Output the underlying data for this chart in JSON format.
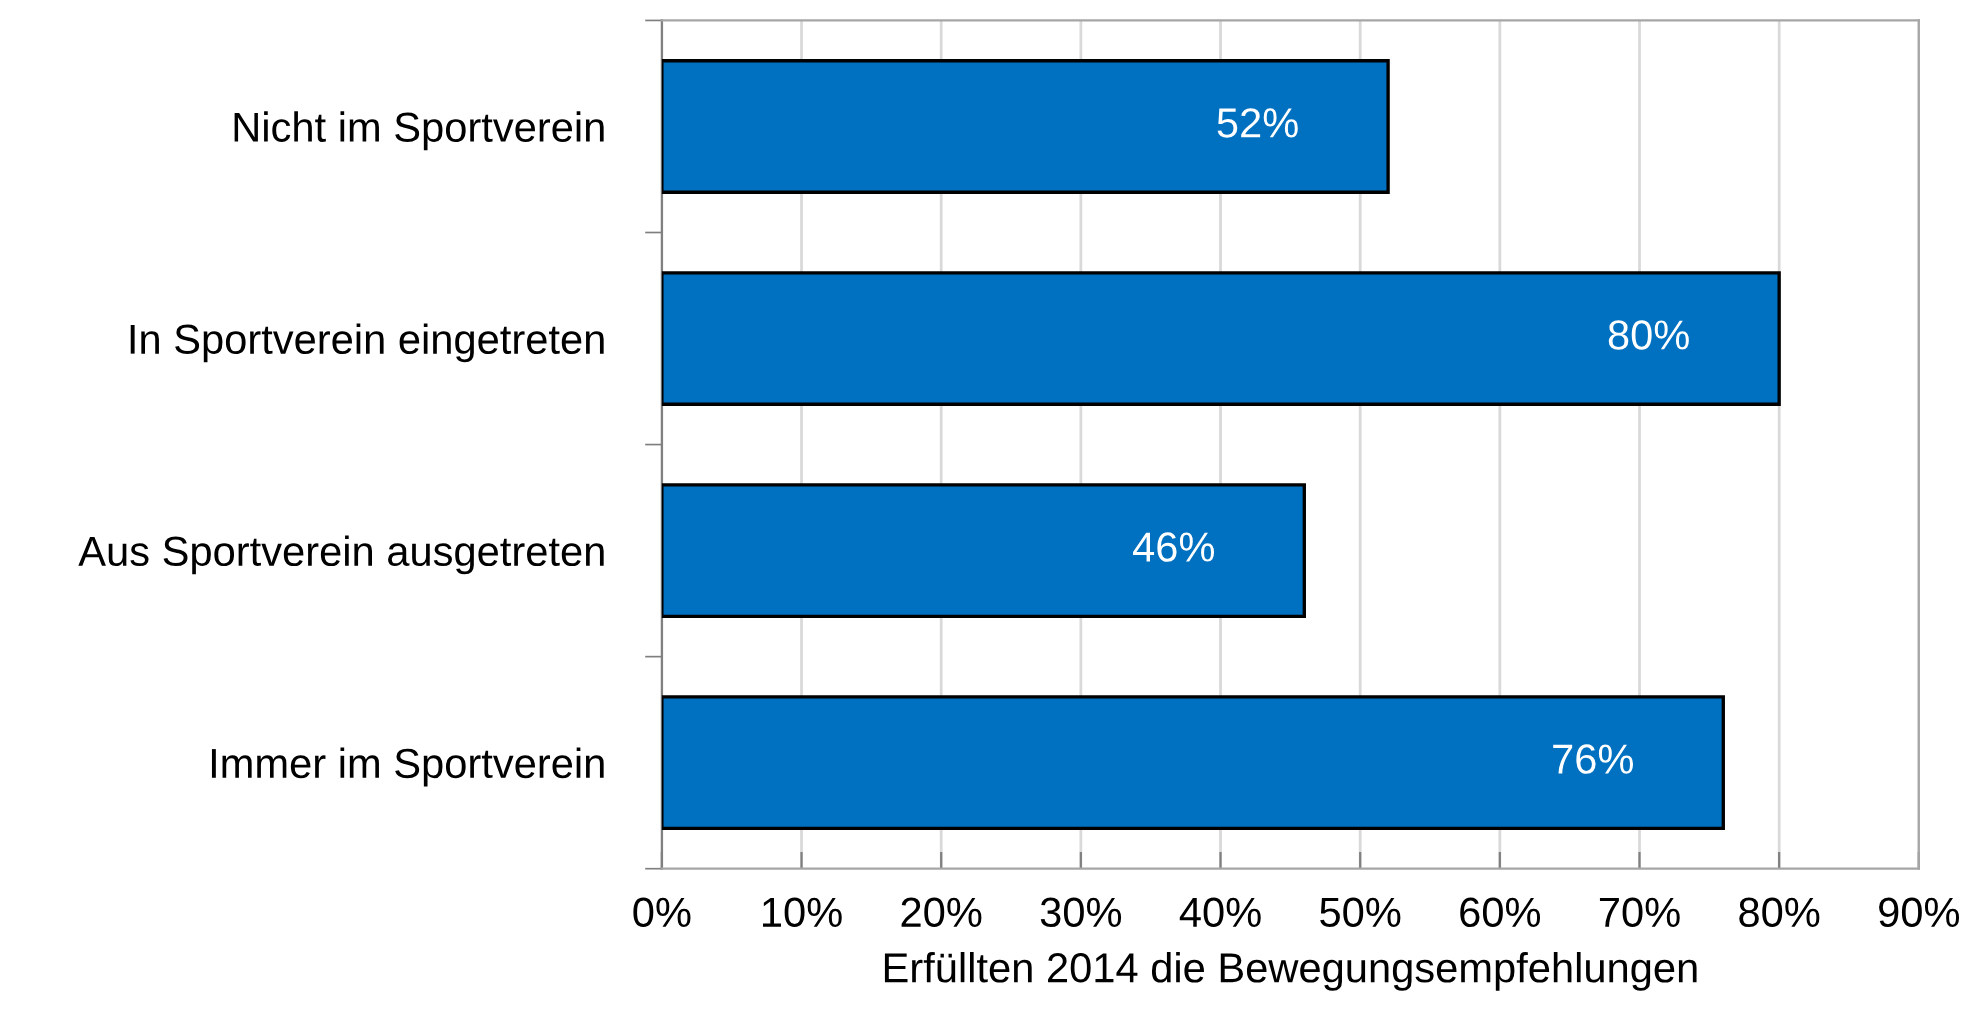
{
  "chart_data": {
    "type": "bar",
    "orientation": "horizontal",
    "categories": [
      "Nicht im Sportverein",
      "In Sportverein eingetreten",
      "Aus Sportverein ausgetreten",
      "Immer im Sportverein"
    ],
    "values": [
      52,
      80,
      46,
      76
    ],
    "color": "#0070c0",
    "value_labels": [
      "52%",
      "80%",
      "46%",
      "76%"
    ],
    "xlabel": "Erfüllten 2014 die Bewegungsempfehlungen",
    "xlim": [
      0,
      90
    ],
    "xticks": [
      {
        "value": 0,
        "label": "0%"
      },
      {
        "value": 10,
        "label": "10%"
      },
      {
        "value": 20,
        "label": "20%"
      },
      {
        "value": 30,
        "label": "30%"
      },
      {
        "value": 40,
        "label": "40%"
      },
      {
        "value": 50,
        "label": "50%"
      },
      {
        "value": 60,
        "label": "60%"
      },
      {
        "value": 70,
        "label": "70%"
      },
      {
        "value": 80,
        "label": "80%"
      },
      {
        "value": 90,
        "label": "90%"
      }
    ],
    "grid": "x",
    "legend": false
  }
}
